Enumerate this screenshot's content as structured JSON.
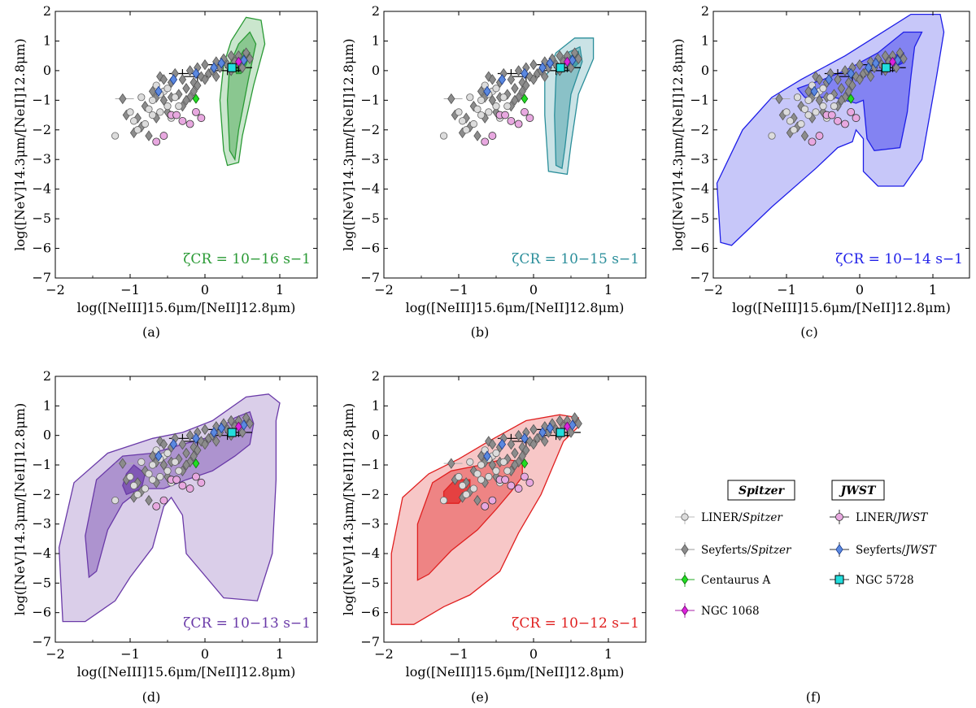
{
  "figure": {
    "xlabel": "log([NeIII]15.6μm/[NeII]12.8μm)",
    "ylabel": "log([NeV]14.3μm/[NeII]12.8μm)",
    "x_ticks": [
      "−2",
      "−1",
      "0",
      "1"
    ],
    "y_ticks": [
      "−7",
      "−6",
      "−5",
      "−4",
      "−3",
      "−2",
      "−1",
      "0",
      "1",
      "2"
    ]
  },
  "colors": {
    "green": "#2a9a35",
    "teal": "#2a8e9a",
    "blue": "#1e1ee8",
    "purple": "#6a3aa8",
    "red": "#e02020",
    "liner_spitzer": "#dcdcdc",
    "seyfert_spitzer": "#8c8c8c",
    "liner_jwst": "#e8a8e0",
    "seyfert_jwst": "#5a88e0",
    "cen_a": "#22dd22",
    "ngc1068": "#dd22dd",
    "ngc5728": "#22dddd"
  },
  "chart_data": [
    {
      "type": "scatter",
      "panel": "(a)",
      "zeta": "ζCR = 10−16 s−1",
      "color": "green",
      "xlim": [
        -2,
        1.5
      ],
      "ylim": [
        -7,
        2
      ]
    },
    {
      "type": "scatter",
      "panel": "(b)",
      "zeta": "ζCR = 10−15 s−1",
      "color": "teal",
      "xlim": [
        -2,
        1.5
      ],
      "ylim": [
        -7,
        2
      ]
    },
    {
      "type": "scatter",
      "panel": "(c)",
      "zeta": "ζCR = 10−14 s−1",
      "color": "blue",
      "xlim": [
        -2,
        1.5
      ],
      "ylim": [
        -7,
        2
      ]
    },
    {
      "type": "scatter",
      "panel": "(d)",
      "zeta": "ζCR = 10−13 s−1",
      "color": "purple",
      "xlim": [
        -2,
        1.5
      ],
      "ylim": [
        -7,
        2
      ]
    },
    {
      "type": "scatter",
      "panel": "(e)",
      "zeta": "ζCR = 10−12 s−1",
      "color": "red",
      "xlim": [
        -2,
        1.5
      ],
      "ylim": [
        -7,
        2
      ]
    }
  ],
  "points": {
    "liner_spitzer": [
      [
        -1.0,
        -1.4
      ],
      [
        -0.95,
        -1.7
      ],
      [
        -0.9,
        -2.0
      ],
      [
        -0.85,
        -0.9
      ],
      [
        -0.8,
        -1.8
      ],
      [
        -0.75,
        -1.3
      ],
      [
        -0.7,
        -1.0
      ],
      [
        -0.65,
        -0.5
      ],
      [
        -0.6,
        -1.4
      ],
      [
        -0.55,
        -0.7
      ],
      [
        -0.5,
        -1.2
      ],
      [
        -0.45,
        -1.6
      ],
      [
        -0.4,
        -0.9
      ],
      [
        -0.35,
        -1.2
      ],
      [
        -0.6,
        -0.8
      ],
      [
        -0.7,
        -1.5
      ],
      [
        -1.2,
        -2.2
      ],
      [
        -0.5,
        -0.6
      ]
    ],
    "seyfert_spitzer": [
      [
        -1.1,
        -0.95
      ],
      [
        -1.05,
        -1.5
      ],
      [
        -0.95,
        -2.1
      ],
      [
        -0.9,
        -1.6
      ],
      [
        -0.8,
        -1.2
      ],
      [
        -0.75,
        -2.2
      ],
      [
        -0.7,
        -0.7
      ],
      [
        -0.65,
        -1.6
      ],
      [
        -0.6,
        -0.2
      ],
      [
        -0.55,
        -1.0
      ],
      [
        -0.5,
        -1.4
      ],
      [
        -0.45,
        -0.4
      ],
      [
        -0.4,
        -0.1
      ],
      [
        -0.35,
        -0.8
      ],
      [
        -0.3,
        -0.3
      ],
      [
        -0.25,
        -0.6
      ],
      [
        -0.2,
        0.0
      ],
      [
        -0.15,
        -0.4
      ],
      [
        -0.1,
        0.1
      ],
      [
        -0.05,
        -0.2
      ],
      [
        0.0,
        0.2
      ],
      [
        0.05,
        -0.1
      ],
      [
        0.1,
        0.0
      ],
      [
        0.15,
        0.3
      ],
      [
        0.2,
        0.1
      ],
      [
        0.25,
        0.4
      ],
      [
        0.3,
        0.2
      ],
      [
        0.35,
        0.0
      ],
      [
        0.4,
        0.3
      ],
      [
        0.45,
        0.5
      ],
      [
        0.5,
        0.1
      ],
      [
        0.55,
        0.6
      ],
      [
        0.6,
        0.4
      ],
      [
        -0.3,
        -1.2
      ],
      [
        -0.2,
        -0.9
      ],
      [
        -0.1,
        -0.5
      ],
      [
        0.0,
        -0.3
      ],
      [
        -0.85,
        -1.9
      ],
      [
        -0.65,
        -0.9
      ],
      [
        -0.45,
        -0.9
      ],
      [
        -0.25,
        -1.0
      ],
      [
        -0.15,
        -0.7
      ],
      [
        0.15,
        -0.2
      ],
      [
        0.35,
        0.5
      ],
      [
        -0.55,
        -0.3
      ]
    ],
    "liner_jwst": [
      [
        -0.65,
        -2.4
      ],
      [
        -0.55,
        -2.2
      ],
      [
        -0.45,
        -1.5
      ],
      [
        -0.38,
        -1.5
      ],
      [
        -0.3,
        -1.7
      ],
      [
        -0.2,
        -1.8
      ],
      [
        -0.12,
        -1.4
      ],
      [
        -0.05,
        -1.6
      ]
    ],
    "seyfert_jwst": [
      [
        -0.62,
        -0.7
      ],
      [
        -0.42,
        -0.3
      ],
      [
        -0.12,
        -0.1
      ],
      [
        0.12,
        0.1
      ],
      [
        0.22,
        0.25
      ],
      [
        0.52,
        0.35
      ]
    ],
    "ngc5728": [
      [
        0.36,
        0.1
      ]
    ],
    "cen_a": [
      [
        -0.12,
        -0.95
      ]
    ],
    "ngc1068": [
      [
        0.45,
        0.3
      ]
    ],
    "errbars": [
      [
        -0.1,
        -0.2
      ],
      [
        0.2,
        0.2
      ],
      [
        0.45,
        0.1
      ],
      [
        -0.3,
        -0.1
      ],
      [
        0.3,
        0.0
      ]
    ]
  },
  "legend": {
    "caption": "(f)",
    "spitzer_header": "Spitzer",
    "jwst_header": "JWST",
    "items": [
      {
        "label": "LINER/",
        "emph": "Spitzer"
      },
      {
        "label": "Seyferts/",
        "emph": "Spitzer"
      },
      {
        "label": "Centaurus A",
        "emph": ""
      },
      {
        "label": "NGC 1068",
        "emph": ""
      },
      {
        "label": "LINER/",
        "emph": "JWST"
      },
      {
        "label": "Seyferts/",
        "emph": "JWST"
      },
      {
        "label": "NGC 5728",
        "emph": ""
      }
    ]
  }
}
